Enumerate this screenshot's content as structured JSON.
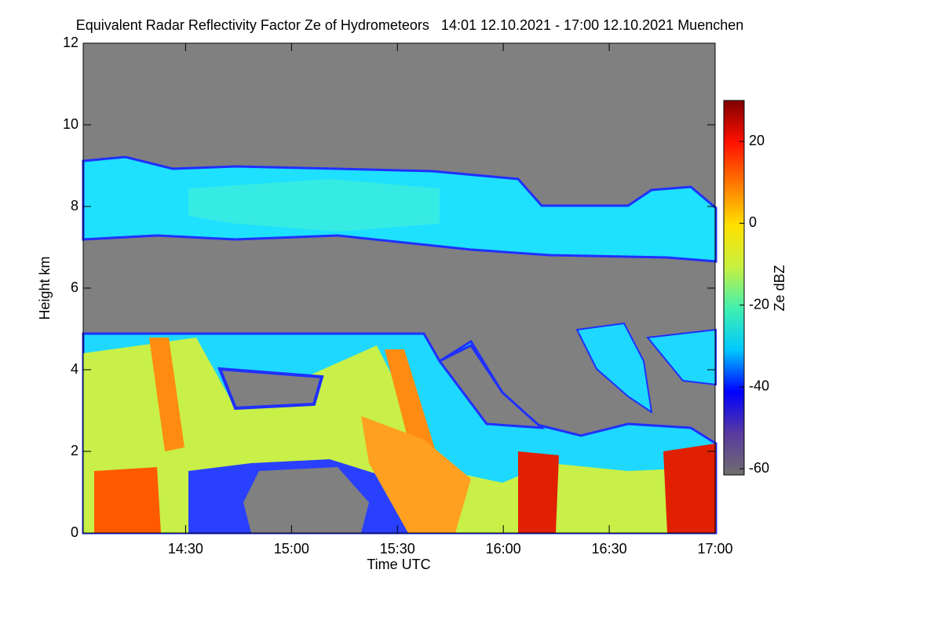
{
  "chart_data": {
    "type": "heatmap",
    "title": "Equivalent Radar Reflectivity Factor Ze of Hydrometeors   14:01 12.10.2021 - 17:00 12.10.2021 Muenchen",
    "x_label": "Time UTC",
    "y_label": "Height km",
    "colorbar_label": "Ze dBZ",
    "xlim": [
      841,
      1020
    ],
    "xticks": [
      {
        "value": 870,
        "label": "14:30"
      },
      {
        "value": 900,
        "label": "15:00"
      },
      {
        "value": 930,
        "label": "15:30"
      },
      {
        "value": 960,
        "label": "16:00"
      },
      {
        "value": 990,
        "label": "16:30"
      },
      {
        "value": 1020,
        "label": "17:00"
      }
    ],
    "ylim": [
      0,
      12
    ],
    "yticks": [
      0,
      2,
      4,
      6,
      8,
      10,
      12
    ],
    "clim": [
      -61.5,
      30
    ],
    "cticks": [
      -60,
      -40,
      -20,
      0,
      20
    ],
    "colormap": [
      "#6e6e6e",
      "#5a3aa0",
      "#0000ff",
      "#00c8ff",
      "#40f0b0",
      "#c8f040",
      "#ffe000",
      "#ff7800",
      "#ff1000",
      "#800000"
    ],
    "background_color": "#808080"
  }
}
